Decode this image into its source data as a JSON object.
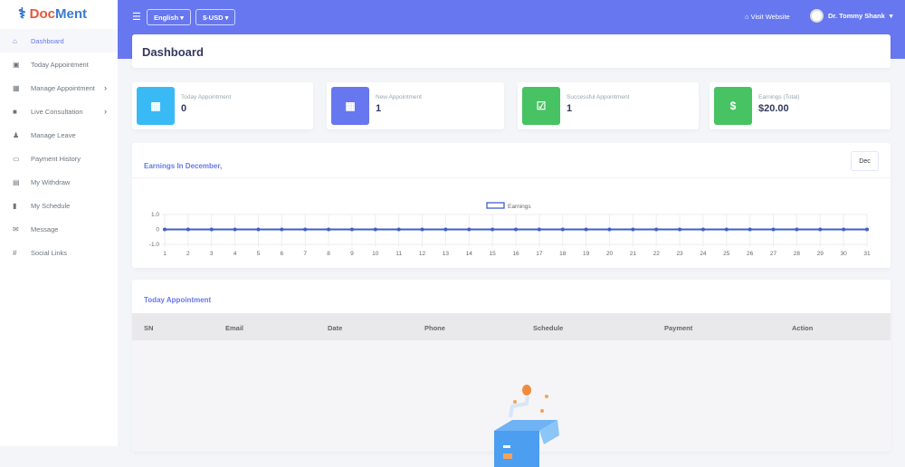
{
  "brand": {
    "name_part1": "Doc",
    "name_part2": "Ment"
  },
  "sidebar": {
    "items": [
      {
        "label": "Dashboard",
        "icon": "home-icon",
        "glyph": "⌂",
        "active": true
      },
      {
        "label": "Today Appointment",
        "icon": "calendar-day-icon",
        "glyph": "▣"
      },
      {
        "label": "Manage Appointment",
        "icon": "calendar-icon",
        "glyph": "▦",
        "chevron": true
      },
      {
        "label": "Live Consultation",
        "icon": "video-icon",
        "glyph": "■",
        "chevron": true
      },
      {
        "label": "Manage Leave",
        "icon": "user-minus-icon",
        "glyph": "♟"
      },
      {
        "label": "Payment History",
        "icon": "credit-card-icon",
        "glyph": "▭"
      },
      {
        "label": "My Withdraw",
        "icon": "money-icon",
        "glyph": "▤"
      },
      {
        "label": "My Schedule",
        "icon": "clipboard-icon",
        "glyph": "▮"
      },
      {
        "label": "Message",
        "icon": "envelope-icon",
        "glyph": "✉"
      },
      {
        "label": "Social Links",
        "icon": "hashtag-icon",
        "glyph": "#"
      }
    ]
  },
  "topbar": {
    "language": "English",
    "currency": "$-USD",
    "visit_website": "Visit Website",
    "user_name": "Dr. Tommy Shank"
  },
  "page_title": "Dashboard",
  "stats": [
    {
      "label": "Today Appointment",
      "value": "0",
      "color": "#3abaf4",
      "icon": "calendar-icon"
    },
    {
      "label": "New Appointment",
      "value": "1",
      "color": "#6777ef",
      "icon": "calendar-icon"
    },
    {
      "label": "Successful Appointment",
      "value": "1",
      "color": "#47c363",
      "icon": "calendar-check-icon"
    },
    {
      "label": "Earnings (Total)",
      "value": "$20.00",
      "color": "#47c363",
      "icon": "dollar-icon"
    }
  ],
  "earnings": {
    "title": "Earnings In December,",
    "month_button": "Dec"
  },
  "chart_data": {
    "type": "line",
    "legend": "Earnings",
    "legend_placement": "top",
    "grid": true,
    "x": [
      1,
      2,
      3,
      4,
      5,
      6,
      7,
      8,
      9,
      10,
      11,
      12,
      13,
      14,
      15,
      16,
      17,
      18,
      19,
      20,
      21,
      22,
      23,
      24,
      25,
      26,
      27,
      28,
      29,
      30,
      31
    ],
    "series": [
      {
        "name": "Earnings",
        "values": [
          0,
          0,
          0,
          0,
          0,
          0,
          0,
          0,
          0,
          0,
          0,
          0,
          0,
          0,
          0,
          0,
          0,
          0,
          0,
          0,
          0,
          0,
          0,
          0,
          0,
          0,
          0,
          0,
          0,
          0,
          0
        ]
      }
    ],
    "yticks": [
      "1.0",
      "0",
      "-1.0"
    ],
    "ylim": [
      -1,
      1
    ],
    "color": "#3f5fc7"
  },
  "today": {
    "title": "Today Appointment",
    "columns": [
      "SN",
      "Email",
      "Date",
      "Phone",
      "Schedule",
      "Payment",
      "Action"
    ]
  }
}
